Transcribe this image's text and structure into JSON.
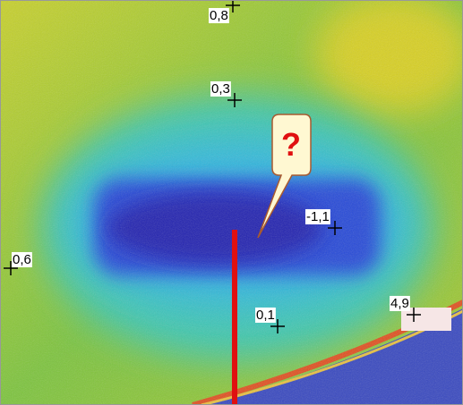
{
  "measurement_points": [
    {
      "label": "0,8"
    },
    {
      "label": "0,3"
    },
    {
      "label": "-1,1"
    },
    {
      "label": "0,6"
    },
    {
      "label": "0,1"
    },
    {
      "label": "4,9"
    }
  ],
  "callout": {
    "text": "?"
  }
}
